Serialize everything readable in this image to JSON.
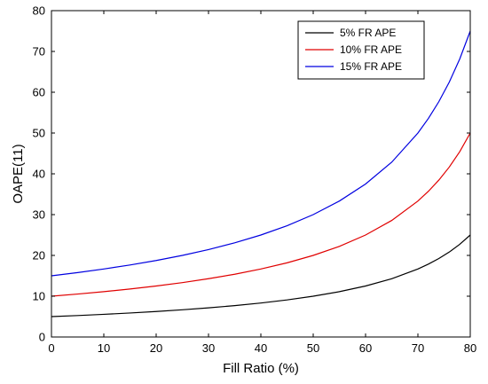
{
  "chart_data": {
    "type": "line",
    "xlabel": "Fill Ratio (%)",
    "ylabel": "OAPE(11)",
    "xlim": [
      0,
      80
    ],
    "ylim": [
      0,
      80
    ],
    "x_ticks": [
      0,
      10,
      20,
      30,
      40,
      50,
      60,
      70,
      80
    ],
    "y_ticks": [
      0,
      10,
      20,
      30,
      40,
      50,
      60,
      70,
      80
    ],
    "grid": false,
    "legend_position": "top-right",
    "x": [
      0,
      5,
      10,
      15,
      20,
      25,
      30,
      35,
      40,
      45,
      50,
      55,
      60,
      65,
      70,
      72,
      74,
      76,
      78,
      80
    ],
    "series": [
      {
        "name": "5% FR APE",
        "color": "#000000",
        "values": [
          5.0,
          5.26,
          5.56,
          5.88,
          6.25,
          6.67,
          7.14,
          7.69,
          8.33,
          9.09,
          10.0,
          11.11,
          12.5,
          14.29,
          16.67,
          17.86,
          19.23,
          20.83,
          22.73,
          25.0
        ]
      },
      {
        "name": "10% FR APE",
        "color": "#e00000",
        "values": [
          10.0,
          10.53,
          11.11,
          11.76,
          12.5,
          13.33,
          14.29,
          15.38,
          16.67,
          18.18,
          20.0,
          22.22,
          25.0,
          28.57,
          33.33,
          35.71,
          38.46,
          41.67,
          45.45,
          50.0
        ]
      },
      {
        "name": "15% FR APE",
        "color": "#0000e0",
        "values": [
          15.0,
          15.79,
          16.67,
          17.65,
          18.75,
          20.0,
          21.43,
          23.08,
          25.0,
          27.27,
          30.0,
          33.33,
          37.5,
          42.86,
          50.0,
          53.57,
          57.69,
          62.5,
          68.18,
          75.0
        ]
      }
    ]
  }
}
